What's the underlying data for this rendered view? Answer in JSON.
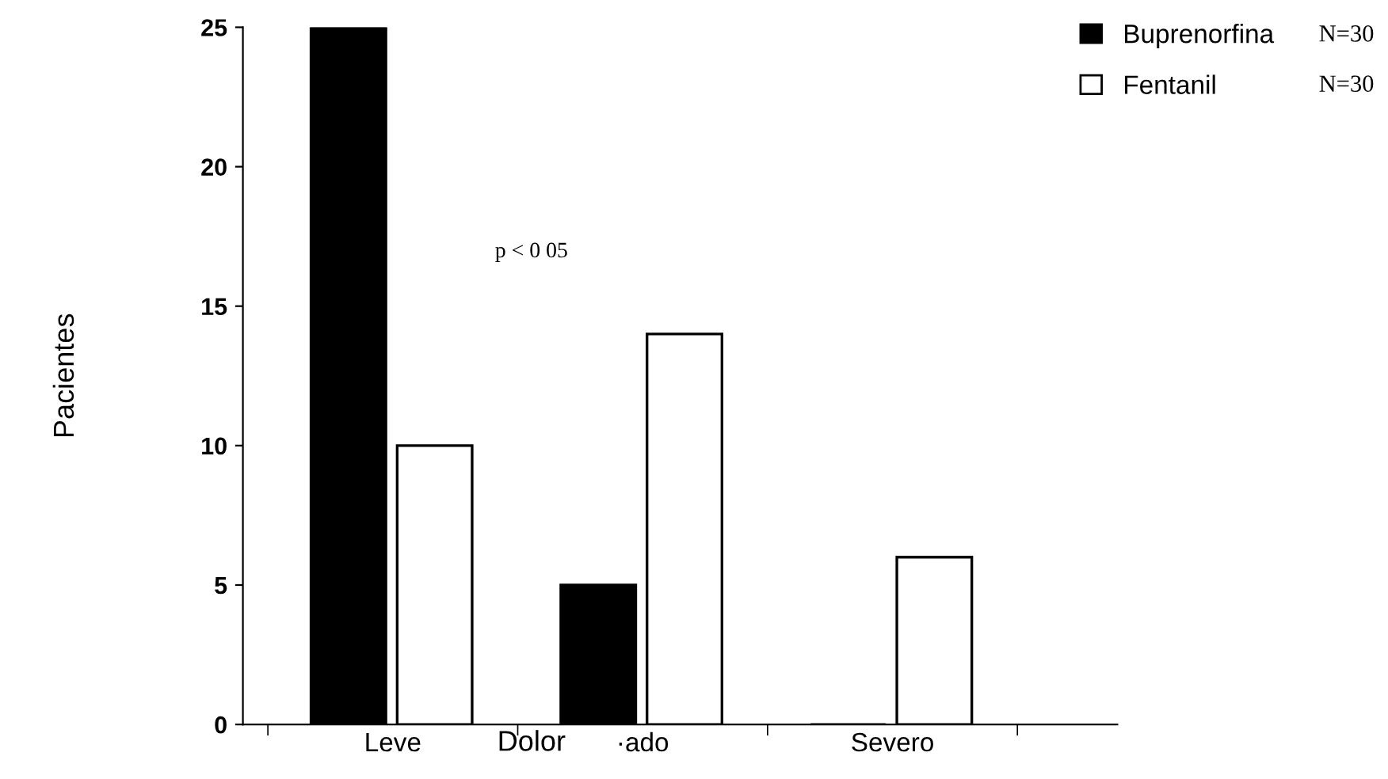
{
  "chart_data": {
    "type": "bar",
    "xlabel": "Dolor",
    "ylabel": "Pacientes",
    "categories": [
      "Leve",
      "·ado",
      "Severo"
    ],
    "series": [
      {
        "name": "Buprenorfina",
        "color": "#000000",
        "values": [
          25,
          5,
          0
        ]
      },
      {
        "name": "Fentanil",
        "color": "#ffffff",
        "values": [
          10,
          14,
          6
        ]
      }
    ],
    "ylim": [
      0,
      25
    ],
    "yticks": [
      0,
      5,
      10,
      15,
      20,
      25
    ],
    "grid": false,
    "legend": "top right",
    "annotations": [
      "p < 0 05",
      "N=30",
      "N=30"
    ]
  }
}
